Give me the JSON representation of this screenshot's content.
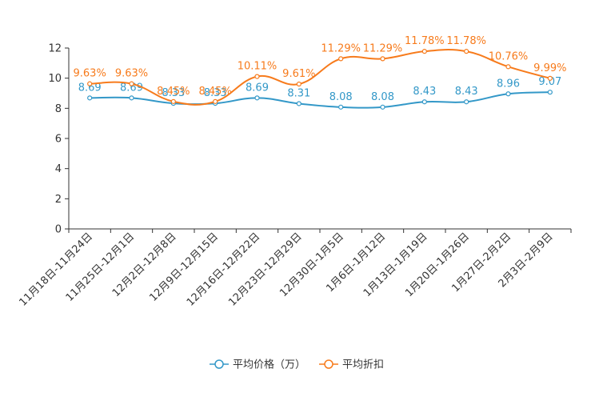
{
  "chart_data": {
    "type": "line",
    "title": "",
    "xlabel": "",
    "ylabel": "",
    "ylim": [
      0,
      12
    ],
    "yticks": [
      0,
      2,
      4,
      6,
      8,
      10,
      12
    ],
    "categories": [
      "11月18日-11月24日",
      "11月25日-12月1日",
      "12月2日-12月8日",
      "12月9日-12月15日",
      "12月16日-12月22日",
      "12月23日-12月29日",
      "12月30日-1月5日",
      "1月6日-1月12日",
      "1月13日-1月19日",
      "1月20日-1月26日",
      "1月27日-2月2日",
      "2月3日-2月9日"
    ],
    "series": [
      {
        "name": "平均价格（万）",
        "color": "#3398c8",
        "values": [
          8.69,
          8.69,
          8.33,
          8.33,
          8.69,
          8.31,
          8.08,
          8.08,
          8.43,
          8.43,
          8.96,
          9.07
        ],
        "labels": [
          "8.69",
          "8.69",
          "8.33",
          "8.33",
          "8.69",
          "8.31",
          "8.08",
          "8.08",
          "8.43",
          "8.43",
          "8.96",
          "9.07"
        ]
      },
      {
        "name": "平均折扣",
        "color": "#f77b1c",
        "values": [
          9.63,
          9.63,
          8.45,
          8.45,
          10.11,
          9.61,
          11.29,
          11.29,
          11.78,
          11.78,
          10.76,
          9.99
        ],
        "labels": [
          "9.63%",
          "9.63%",
          "8.45%",
          "8.45%",
          "10.11%",
          "9.61%",
          "11.29%",
          "11.29%",
          "11.78%",
          "11.78%",
          "10.76%",
          "9.99%"
        ]
      }
    ],
    "grid": false,
    "legend_position": "bottom-center"
  }
}
